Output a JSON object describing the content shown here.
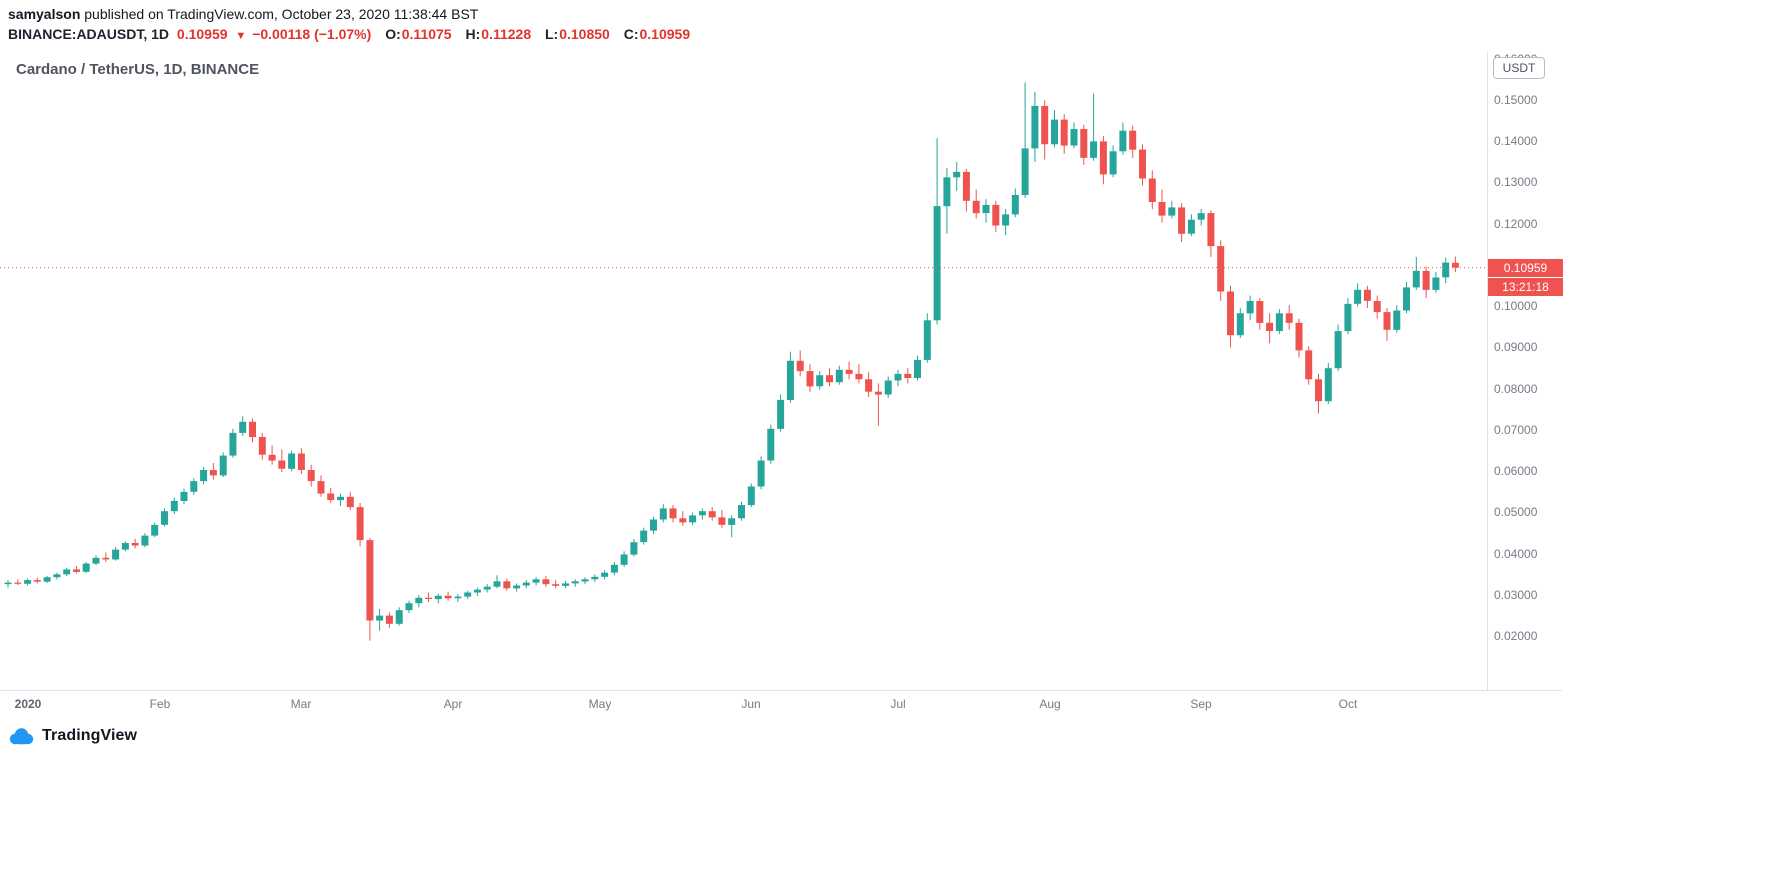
{
  "header": {
    "line1": {
      "author": "samyalson",
      "rest": " published on TradingView.com, October 23, 2020 11:38:44 BST"
    },
    "line2": {
      "symbol": "BINANCE:ADAUSDT, 1D",
      "price": "0.10959",
      "arrow": "▼",
      "change": "−0.00118 (−1.07%)",
      "ohlc": [
        {
          "label": "O:",
          "value": "0.11075"
        },
        {
          "label": "H:",
          "value": "0.11228"
        },
        {
          "label": "L:",
          "value": "0.10850"
        },
        {
          "label": "C:",
          "value": "0.10959"
        }
      ]
    }
  },
  "chart": {
    "legend": "Cardano / TetherUS, 1D, BINANCE",
    "axis_unit": "USDT",
    "price_badge": "0.10959",
    "countdown": "13:21:18",
    "colors": {
      "up": "#26a69a",
      "down": "#ef5350",
      "text_red": "#e0342b",
      "axis_text": "#787b86",
      "separator": "#e0e3eb",
      "badge_bg": "#ef5350",
      "logo_blue": "#2196f3"
    }
  },
  "footer": {
    "logo_text": "TradingView"
  },
  "chart_data": {
    "type": "candlestick",
    "title": "Cardano / TetherUS, 1D, BINANCE",
    "symbol": "BINANCE:ADAUSDT",
    "timeframe": "1D",
    "last_price": 0.10959,
    "last_candle": {
      "open": 0.11075,
      "high": 0.11228,
      "low": 0.1085,
      "close": 0.10959
    },
    "y_axis": {
      "unit": "USDT",
      "min": 0.02,
      "max": 0.16,
      "step": 0.01,
      "decimals": 5
    },
    "x_axis": {
      "range": "Jan 2020 – Oct 23 2020",
      "month_marks": [
        {
          "label": "2020",
          "day": 4
        },
        {
          "label": "Feb",
          "day": 31
        },
        {
          "label": "Mar",
          "day": 60
        },
        {
          "label": "Apr",
          "day": 91
        },
        {
          "label": "May",
          "day": 121
        },
        {
          "label": "Jun",
          "day": 152
        },
        {
          "label": "Jul",
          "day": 182
        },
        {
          "label": "Aug",
          "day": 213
        },
        {
          "label": "Sep",
          "day": 244
        },
        {
          "label": "Oct",
          "day": 274
        }
      ]
    },
    "days_per_candle": 2,
    "candles": [
      [
        0.0328,
        0.0338,
        0.032,
        0.0332
      ],
      [
        0.0332,
        0.034,
        0.0326,
        0.0329
      ],
      [
        0.0329,
        0.0342,
        0.0325,
        0.0338
      ],
      [
        0.0338,
        0.0344,
        0.033,
        0.0334
      ],
      [
        0.0334,
        0.0348,
        0.0331,
        0.0345
      ],
      [
        0.0345,
        0.0356,
        0.034,
        0.0352
      ],
      [
        0.0352,
        0.0368,
        0.0348,
        0.0364
      ],
      [
        0.0364,
        0.0372,
        0.0354,
        0.0358
      ],
      [
        0.0358,
        0.0382,
        0.0355,
        0.0378
      ],
      [
        0.0378,
        0.0398,
        0.0374,
        0.0392
      ],
      [
        0.0392,
        0.0405,
        0.0382,
        0.0388
      ],
      [
        0.0388,
        0.0418,
        0.0385,
        0.0412
      ],
      [
        0.0412,
        0.0432,
        0.0408,
        0.0428
      ],
      [
        0.0428,
        0.0438,
        0.0415,
        0.0422
      ],
      [
        0.0422,
        0.0452,
        0.0418,
        0.0446
      ],
      [
        0.0446,
        0.0478,
        0.0442,
        0.0472
      ],
      [
        0.0472,
        0.0512,
        0.0468,
        0.0505
      ],
      [
        0.0505,
        0.0538,
        0.0498,
        0.053
      ],
      [
        0.053,
        0.056,
        0.0522,
        0.0552
      ],
      [
        0.0552,
        0.0585,
        0.0545,
        0.0578
      ],
      [
        0.0578,
        0.0612,
        0.057,
        0.0605
      ],
      [
        0.0605,
        0.0622,
        0.0582,
        0.0592
      ],
      [
        0.0592,
        0.0648,
        0.0588,
        0.064
      ],
      [
        0.064,
        0.0705,
        0.0635,
        0.0695
      ],
      [
        0.0695,
        0.0735,
        0.0688,
        0.0722
      ],
      [
        0.0722,
        0.073,
        0.0672,
        0.0685
      ],
      [
        0.0685,
        0.0695,
        0.063,
        0.0642
      ],
      [
        0.0642,
        0.0665,
        0.0618,
        0.0628
      ],
      [
        0.0628,
        0.0655,
        0.06,
        0.0608
      ],
      [
        0.0608,
        0.0652,
        0.0602,
        0.0645
      ],
      [
        0.0645,
        0.0658,
        0.0595,
        0.0605
      ],
      [
        0.0605,
        0.0618,
        0.0565,
        0.0578
      ],
      [
        0.0578,
        0.0592,
        0.054,
        0.0548
      ],
      [
        0.0548,
        0.0562,
        0.0525,
        0.0532
      ],
      [
        0.0532,
        0.0548,
        0.0518,
        0.054
      ],
      [
        0.054,
        0.0552,
        0.0508,
        0.0515
      ],
      [
        0.0515,
        0.0525,
        0.042,
        0.0435
      ],
      [
        0.0435,
        0.044,
        0.0191,
        0.024
      ],
      [
        0.024,
        0.0268,
        0.0215,
        0.0252
      ],
      [
        0.0252,
        0.026,
        0.0222,
        0.0232
      ],
      [
        0.0232,
        0.0272,
        0.0228,
        0.0265
      ],
      [
        0.0265,
        0.0288,
        0.0258,
        0.0282
      ],
      [
        0.0282,
        0.0302,
        0.0272,
        0.0295
      ],
      [
        0.0295,
        0.0308,
        0.0285,
        0.0292
      ],
      [
        0.0292,
        0.0305,
        0.0282,
        0.03
      ],
      [
        0.03,
        0.031,
        0.0288,
        0.0294
      ],
      [
        0.0294,
        0.0304,
        0.0285,
        0.0298
      ],
      [
        0.0298,
        0.0312,
        0.0292,
        0.0308
      ],
      [
        0.0308,
        0.032,
        0.03,
        0.0315
      ],
      [
        0.0315,
        0.0328,
        0.0308,
        0.0322
      ],
      [
        0.0322,
        0.035,
        0.0318,
        0.0335
      ],
      [
        0.0335,
        0.0342,
        0.0312,
        0.0318
      ],
      [
        0.0318,
        0.033,
        0.031,
        0.0325
      ],
      [
        0.0325,
        0.0338,
        0.0318,
        0.0332
      ],
      [
        0.0332,
        0.0345,
        0.0325,
        0.034
      ],
      [
        0.034,
        0.0348,
        0.0322,
        0.0328
      ],
      [
        0.0328,
        0.0338,
        0.0318,
        0.0324
      ],
      [
        0.0324,
        0.0336,
        0.0318,
        0.033
      ],
      [
        0.033,
        0.034,
        0.0322,
        0.0335
      ],
      [
        0.0335,
        0.0345,
        0.0328,
        0.034
      ],
      [
        0.034,
        0.0352,
        0.0334,
        0.0346
      ],
      [
        0.0346,
        0.0362,
        0.034,
        0.0356
      ],
      [
        0.0356,
        0.0382,
        0.035,
        0.0375
      ],
      [
        0.0375,
        0.0408,
        0.037,
        0.04
      ],
      [
        0.04,
        0.0438,
        0.0395,
        0.043
      ],
      [
        0.043,
        0.0465,
        0.0424,
        0.0458
      ],
      [
        0.0458,
        0.0492,
        0.045,
        0.0485
      ],
      [
        0.0485,
        0.0522,
        0.0478,
        0.0512
      ],
      [
        0.0512,
        0.052,
        0.0478,
        0.0488
      ],
      [
        0.0488,
        0.0505,
        0.047,
        0.0478
      ],
      [
        0.0478,
        0.0502,
        0.0472,
        0.0495
      ],
      [
        0.0495,
        0.0512,
        0.0485,
        0.0505
      ],
      [
        0.0505,
        0.0515,
        0.0482,
        0.049
      ],
      [
        0.049,
        0.0508,
        0.0465,
        0.0472
      ],
      [
        0.0472,
        0.0495,
        0.0442,
        0.0488
      ],
      [
        0.0488,
        0.0528,
        0.0482,
        0.052
      ],
      [
        0.052,
        0.0572,
        0.0515,
        0.0565
      ],
      [
        0.0565,
        0.0638,
        0.0558,
        0.0628
      ],
      [
        0.0628,
        0.0715,
        0.062,
        0.0705
      ],
      [
        0.0705,
        0.0788,
        0.0698,
        0.0775
      ],
      [
        0.0775,
        0.0892,
        0.0768,
        0.087
      ],
      [
        0.087,
        0.0895,
        0.0832,
        0.0845
      ],
      [
        0.0845,
        0.0862,
        0.0795,
        0.0808
      ],
      [
        0.0808,
        0.0845,
        0.08,
        0.0835
      ],
      [
        0.0835,
        0.0852,
        0.0808,
        0.0818
      ],
      [
        0.0818,
        0.0858,
        0.0812,
        0.0848
      ],
      [
        0.0848,
        0.0868,
        0.0825,
        0.0838
      ],
      [
        0.0838,
        0.0862,
        0.0815,
        0.0825
      ],
      [
        0.0825,
        0.0842,
        0.0782,
        0.0795
      ],
      [
        0.0795,
        0.0815,
        0.0712,
        0.0788
      ],
      [
        0.0788,
        0.0832,
        0.078,
        0.0822
      ],
      [
        0.0822,
        0.0848,
        0.0808,
        0.0838
      ],
      [
        0.0838,
        0.0852,
        0.0815,
        0.0828
      ],
      [
        0.0828,
        0.0882,
        0.0822,
        0.0872
      ],
      [
        0.0872,
        0.0985,
        0.0865,
        0.0968
      ],
      [
        0.0968,
        0.141,
        0.0958,
        0.1245
      ],
      [
        0.1245,
        0.1338,
        0.1178,
        0.1315
      ],
      [
        0.1315,
        0.1352,
        0.1282,
        0.1328
      ],
      [
        0.1328,
        0.1335,
        0.1232,
        0.1258
      ],
      [
        0.1258,
        0.1285,
        0.1215,
        0.1228
      ],
      [
        0.1228,
        0.1262,
        0.1205,
        0.1248
      ],
      [
        0.1248,
        0.1258,
        0.1182,
        0.1198
      ],
      [
        0.1198,
        0.1238,
        0.1175,
        0.1225
      ],
      [
        0.1225,
        0.1288,
        0.1218,
        0.1272
      ],
      [
        0.1272,
        0.1545,
        0.1265,
        0.1385
      ],
      [
        0.1385,
        0.1522,
        0.1352,
        0.1488
      ],
      [
        0.1488,
        0.1502,
        0.1358,
        0.1395
      ],
      [
        0.1395,
        0.1478,
        0.1388,
        0.1455
      ],
      [
        0.1455,
        0.1468,
        0.1372,
        0.1392
      ],
      [
        0.1392,
        0.1448,
        0.1385,
        0.1432
      ],
      [
        0.1432,
        0.1442,
        0.1345,
        0.1362
      ],
      [
        0.1362,
        0.1518,
        0.1355,
        0.1402
      ],
      [
        0.1402,
        0.1415,
        0.1298,
        0.1322
      ],
      [
        0.1322,
        0.1392,
        0.1315,
        0.1378
      ],
      [
        0.1378,
        0.1448,
        0.137,
        0.1428
      ],
      [
        0.1428,
        0.144,
        0.1362,
        0.1382
      ],
      [
        0.1382,
        0.1395,
        0.1295,
        0.1312
      ],
      [
        0.1312,
        0.1332,
        0.1238,
        0.1255
      ],
      [
        0.1255,
        0.1285,
        0.1205,
        0.1222
      ],
      [
        0.1222,
        0.1258,
        0.1215,
        0.1242
      ],
      [
        0.1242,
        0.1252,
        0.1158,
        0.1178
      ],
      [
        0.1178,
        0.1225,
        0.1172,
        0.1212
      ],
      [
        0.1212,
        0.1238,
        0.1198,
        0.1228
      ],
      [
        0.1228,
        0.1235,
        0.1122,
        0.1148
      ],
      [
        0.1148,
        0.1162,
        0.1015,
        0.1038
      ],
      [
        0.1038,
        0.1052,
        0.0902,
        0.0932
      ],
      [
        0.0932,
        0.0998,
        0.0925,
        0.0985
      ],
      [
        0.0985,
        0.1028,
        0.0968,
        0.1015
      ],
      [
        0.1015,
        0.1022,
        0.0945,
        0.0962
      ],
      [
        0.0962,
        0.0985,
        0.0912,
        0.0942
      ],
      [
        0.0942,
        0.0995,
        0.0935,
        0.0985
      ],
      [
        0.0985,
        0.1005,
        0.0945,
        0.0962
      ],
      [
        0.0962,
        0.0972,
        0.0878,
        0.0895
      ],
      [
        0.0895,
        0.0905,
        0.0812,
        0.0825
      ],
      [
        0.0825,
        0.0838,
        0.0742,
        0.0772
      ],
      [
        0.0772,
        0.0865,
        0.0765,
        0.0852
      ],
      [
        0.0852,
        0.0958,
        0.0845,
        0.0942
      ],
      [
        0.0942,
        0.1022,
        0.0935,
        0.1008
      ],
      [
        0.1008,
        0.1058,
        0.1002,
        0.1042
      ],
      [
        0.1042,
        0.1052,
        0.0998,
        0.1015
      ],
      [
        0.1015,
        0.1028,
        0.0972,
        0.0988
      ],
      [
        0.0988,
        0.0998,
        0.0918,
        0.0945
      ],
      [
        0.0945,
        0.1005,
        0.0938,
        0.0992
      ],
      [
        0.0992,
        0.1062,
        0.0985,
        0.1048
      ],
      [
        0.1048,
        0.1122,
        0.1042,
        0.1088
      ],
      [
        0.1088,
        0.1098,
        0.1022,
        0.1042
      ],
      [
        0.1042,
        0.1085,
        0.1035,
        0.1072
      ],
      [
        0.1072,
        0.112,
        0.1058,
        0.1108
      ],
      [
        0.11075,
        0.11228,
        0.1085,
        0.10959
      ]
    ]
  }
}
